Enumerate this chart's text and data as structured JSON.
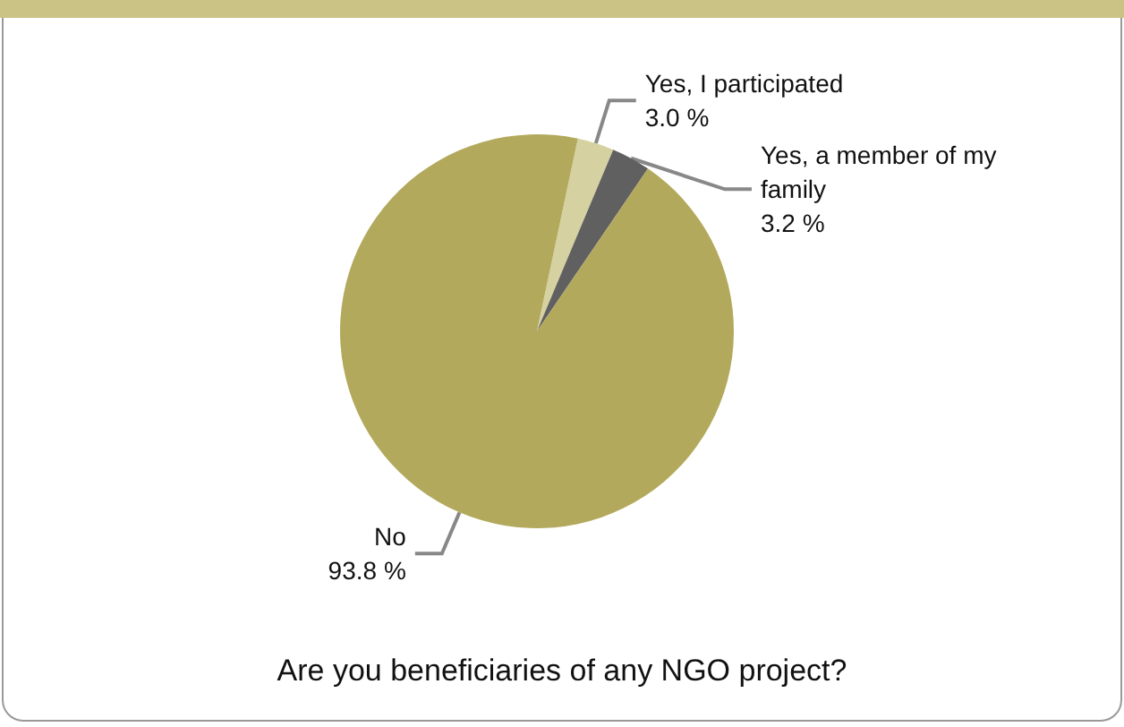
{
  "chart_data": {
    "type": "pie",
    "title": "Are you beneficiaries of any NGO project?",
    "categories": [
      "Yes, I participated",
      "Yes, a member of my family",
      "No"
    ],
    "values": [
      3.0,
      3.2,
      93.8
    ],
    "value_labels": [
      "3.0 %",
      "3.2 %",
      "93.8 %"
    ],
    "colors": [
      "#d6d1a0",
      "#606060",
      "#b3a95c"
    ],
    "legend": false
  }
}
